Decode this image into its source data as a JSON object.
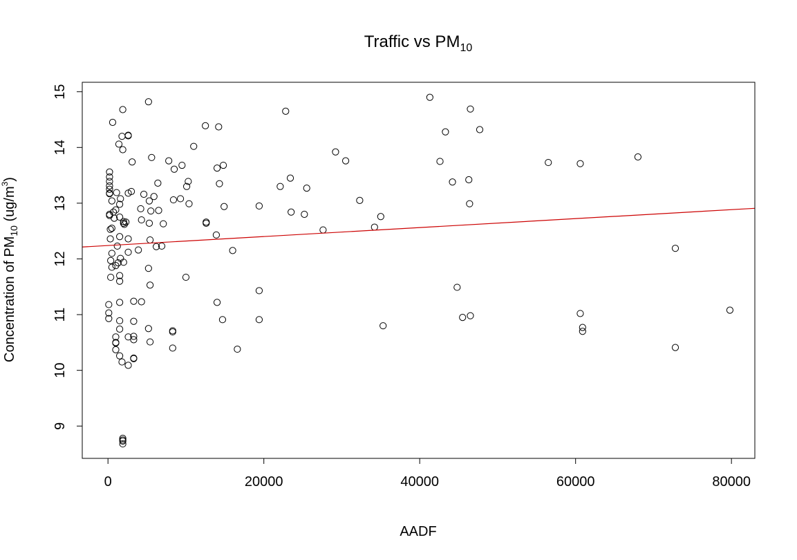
{
  "chart_data": {
    "type": "scatter",
    "title": "Traffic vs PM",
    "title_subscript": "10",
    "xlabel": "AADF",
    "ylabel": {
      "prefix": "Concentration of PM",
      "subscript": "10",
      "middle": " (ug/m",
      "superscript": "3",
      "suffix": ")"
    },
    "xlim": [
      -3300,
      83000
    ],
    "ylim": [
      8.42,
      15.17
    ],
    "xticks": [
      0,
      20000,
      40000,
      60000,
      80000
    ],
    "xtick_labels": [
      "0",
      "20000",
      "40000",
      "60000",
      "80000"
    ],
    "yticks": [
      9,
      10,
      11,
      12,
      13,
      14,
      15
    ],
    "ytick_labels": [
      "9",
      "10",
      "11",
      "12",
      "13",
      "14",
      "15"
    ],
    "grid": false,
    "point_color": "#000000",
    "fit_line": {
      "color": "#cc0000",
      "intercept": 12.24,
      "slope": 8.05e-06
    },
    "points": [
      [
        100,
        11.18
      ],
      [
        100,
        11.03
      ],
      [
        100,
        10.93
      ],
      [
        200,
        13.56
      ],
      [
        200,
        13.47
      ],
      [
        200,
        13.39
      ],
      [
        200,
        13.31
      ],
      [
        200,
        13.25
      ],
      [
        200,
        13.18
      ],
      [
        200,
        13.17
      ],
      [
        200,
        12.8
      ],
      [
        200,
        12.78
      ],
      [
        300,
        12.53
      ],
      [
        300,
        12.36
      ],
      [
        350,
        11.97
      ],
      [
        350,
        11.67
      ],
      [
        500,
        13.04
      ],
      [
        500,
        12.55
      ],
      [
        500,
        12.1
      ],
      [
        500,
        11.85
      ],
      [
        600,
        14.45
      ],
      [
        700,
        12.84
      ],
      [
        800,
        12.73
      ],
      [
        1000,
        12.88
      ],
      [
        1000,
        11.88
      ],
      [
        1000,
        10.6
      ],
      [
        1000,
        10.5
      ],
      [
        1000,
        10.49
      ],
      [
        1000,
        10.37
      ],
      [
        1100,
        13.19
      ],
      [
        1200,
        12.23
      ],
      [
        1300,
        11.93
      ],
      [
        1400,
        14.06
      ],
      [
        1500,
        12.98
      ],
      [
        1500,
        12.75
      ],
      [
        1500,
        12.4
      ],
      [
        1500,
        11.7
      ],
      [
        1500,
        11.6
      ],
      [
        1500,
        11.22
      ],
      [
        1500,
        10.89
      ],
      [
        1500,
        10.74
      ],
      [
        1500,
        10.26
      ],
      [
        1600,
        13.08
      ],
      [
        1600,
        12.01
      ],
      [
        1800,
        14.2
      ],
      [
        1800,
        10.15
      ],
      [
        1900,
        14.68
      ],
      [
        1900,
        13.96
      ],
      [
        1900,
        8.78
      ],
      [
        1900,
        8.75
      ],
      [
        1900,
        8.73
      ],
      [
        1900,
        8.68
      ],
      [
        2000,
        12.67
      ],
      [
        2000,
        12.64
      ],
      [
        2000,
        11.94
      ],
      [
        2100,
        12.62
      ],
      [
        2300,
        12.66
      ],
      [
        2600,
        14.22
      ],
      [
        2600,
        14.21
      ],
      [
        2600,
        13.18
      ],
      [
        2600,
        12.36
      ],
      [
        2600,
        12.12
      ],
      [
        2600,
        10.6
      ],
      [
        2600,
        10.09
      ],
      [
        3000,
        13.21
      ],
      [
        3100,
        13.74
      ],
      [
        3300,
        11.24
      ],
      [
        3300,
        10.88
      ],
      [
        3300,
        10.61
      ],
      [
        3300,
        10.55
      ],
      [
        3300,
        10.22
      ],
      [
        3300,
        10.21
      ],
      [
        3900,
        12.16
      ],
      [
        4200,
        12.9
      ],
      [
        4300,
        12.7
      ],
      [
        4300,
        11.23
      ],
      [
        4600,
        13.16
      ],
      [
        5200,
        14.82
      ],
      [
        5200,
        11.83
      ],
      [
        5200,
        10.75
      ],
      [
        5300,
        13.04
      ],
      [
        5300,
        12.64
      ],
      [
        5400,
        12.34
      ],
      [
        5400,
        11.53
      ],
      [
        5400,
        10.51
      ],
      [
        5500,
        12.86
      ],
      [
        5600,
        13.82
      ],
      [
        5900,
        13.12
      ],
      [
        6200,
        12.22
      ],
      [
        6400,
        13.36
      ],
      [
        6500,
        12.87
      ],
      [
        6900,
        12.23
      ],
      [
        7100,
        12.63
      ],
      [
        7800,
        13.76
      ],
      [
        8300,
        10.71
      ],
      [
        8300,
        10.69
      ],
      [
        8300,
        10.4
      ],
      [
        8400,
        13.06
      ],
      [
        8500,
        13.61
      ],
      [
        9300,
        13.08
      ],
      [
        9500,
        13.68
      ],
      [
        10000,
        11.67
      ],
      [
        10100,
        13.3
      ],
      [
        10300,
        13.39
      ],
      [
        10400,
        12.99
      ],
      [
        11000,
        14.02
      ],
      [
        12500,
        14.39
      ],
      [
        12600,
        12.66
      ],
      [
        12600,
        12.64
      ],
      [
        13900,
        12.43
      ],
      [
        14000,
        13.63
      ],
      [
        14000,
        11.22
      ],
      [
        14200,
        14.37
      ],
      [
        14300,
        13.35
      ],
      [
        14700,
        10.91
      ],
      [
        14800,
        13.68
      ],
      [
        14900,
        12.94
      ],
      [
        16000,
        12.15
      ],
      [
        16600,
        10.38
      ],
      [
        19400,
        12.95
      ],
      [
        19400,
        11.43
      ],
      [
        19400,
        10.91
      ],
      [
        22100,
        13.3
      ],
      [
        22800,
        14.65
      ],
      [
        23400,
        13.45
      ],
      [
        23500,
        12.84
      ],
      [
        25200,
        12.8
      ],
      [
        25500,
        13.27
      ],
      [
        27600,
        12.52
      ],
      [
        29200,
        13.92
      ],
      [
        30500,
        13.76
      ],
      [
        32300,
        13.05
      ],
      [
        34200,
        12.57
      ],
      [
        35000,
        12.76
      ],
      [
        35300,
        10.8
      ],
      [
        41300,
        14.9
      ],
      [
        42600,
        13.75
      ],
      [
        43300,
        14.28
      ],
      [
        44200,
        13.38
      ],
      [
        44800,
        11.49
      ],
      [
        45500,
        10.95
      ],
      [
        46300,
        13.42
      ],
      [
        46400,
        12.99
      ],
      [
        46500,
        14.69
      ],
      [
        46500,
        10.98
      ],
      [
        47700,
        14.32
      ],
      [
        56500,
        13.73
      ],
      [
        60600,
        13.71
      ],
      [
        60600,
        11.02
      ],
      [
        60900,
        10.77
      ],
      [
        60900,
        10.7
      ],
      [
        68000,
        13.83
      ],
      [
        72800,
        12.19
      ],
      [
        72800,
        10.41
      ],
      [
        79800,
        11.08
      ]
    ]
  }
}
